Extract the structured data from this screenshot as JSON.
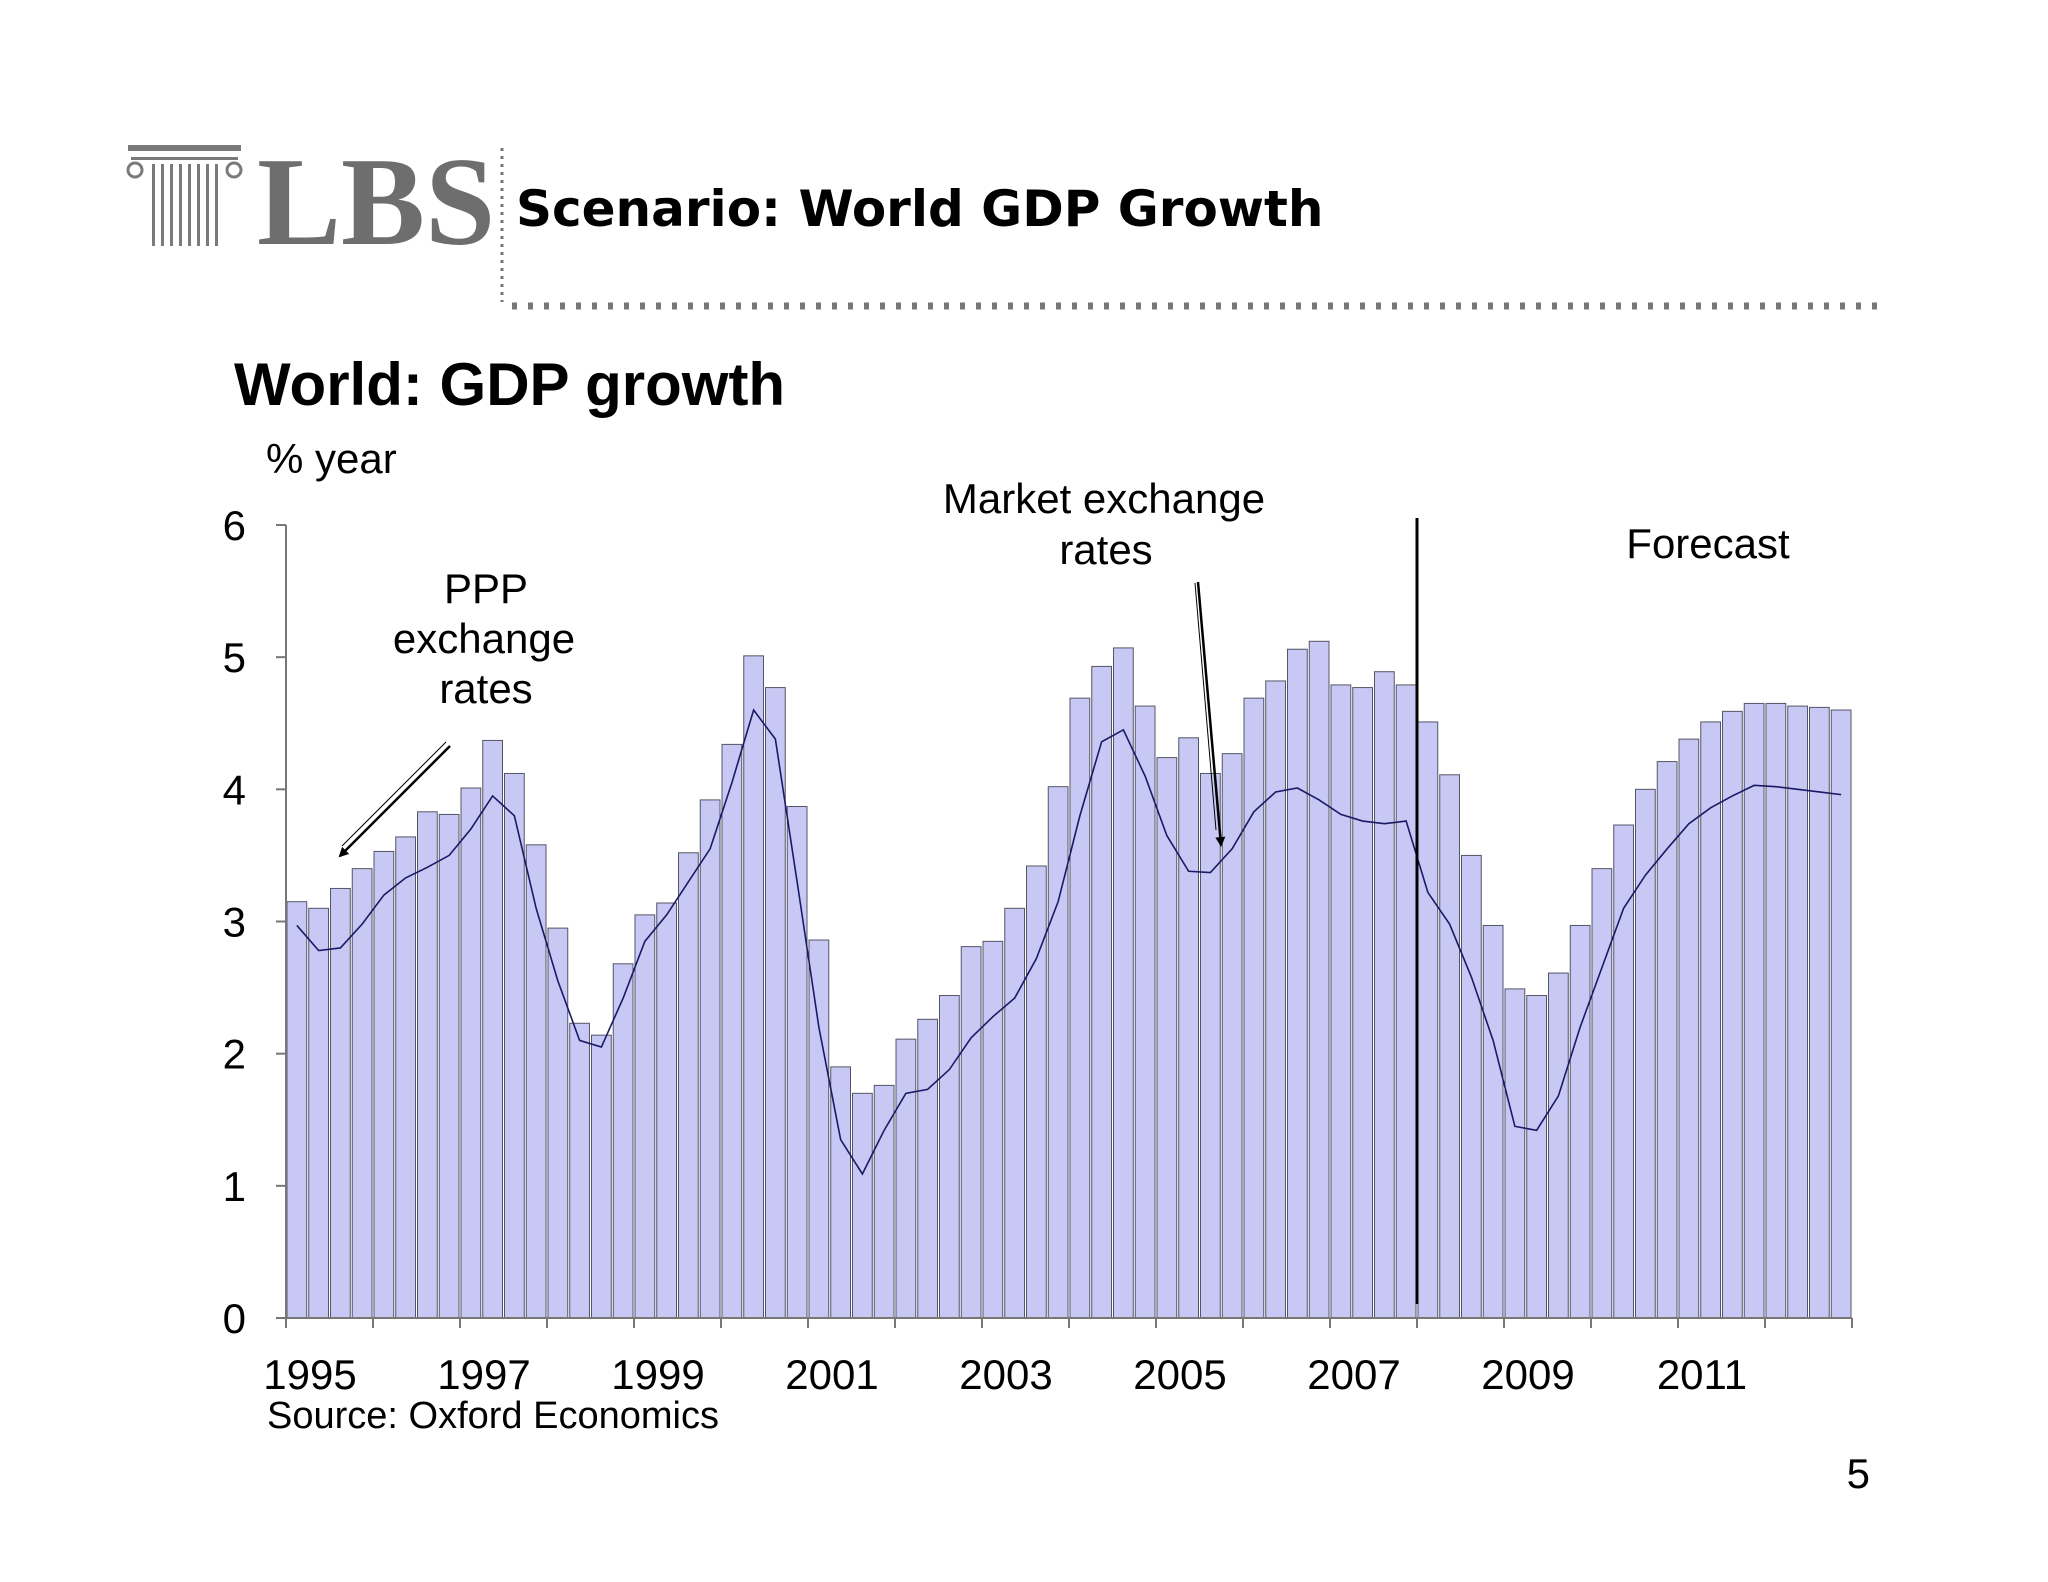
{
  "header": {
    "logo_text": "LBS",
    "title": "Scenario: World GDP Growth"
  },
  "chart_data": {
    "type": "bar",
    "title": "World: GDP growth",
    "ylabel": "% year",
    "ylim": [
      0,
      6
    ],
    "yticks": [
      "0",
      "1",
      "2",
      "3",
      "4",
      "5",
      "6"
    ],
    "xtick_labels": [
      "1995",
      "1997",
      "1999",
      "2001",
      "2003",
      "2005",
      "2007",
      "2009",
      "2011"
    ],
    "x_start": "1995Q1",
    "frequency": "quarterly",
    "grid": false,
    "colors": {
      "bar_fill": "#c8c8f5",
      "bar_edge": "#555566",
      "line": "#1a1a66"
    },
    "series": [
      {
        "name": "PPP exchange rates",
        "mark": "bar",
        "values": [
          3.15,
          3.1,
          3.25,
          3.4,
          3.53,
          3.64,
          3.83,
          3.81,
          4.01,
          4.37,
          4.12,
          3.58,
          2.95,
          2.23,
          2.14,
          2.68,
          3.05,
          3.14,
          3.52,
          3.92,
          4.34,
          5.01,
          4.77,
          3.87,
          2.86,
          1.9,
          1.7,
          1.76,
          2.11,
          2.26,
          2.44,
          2.81,
          2.85,
          3.1,
          3.42,
          4.02,
          4.69,
          4.93,
          5.07,
          4.63,
          4.24,
          4.39,
          4.12,
          4.27,
          4.69,
          4.82,
          5.06,
          5.12,
          4.79,
          4.77,
          4.89,
          4.79,
          4.51,
          4.11,
          3.5,
          2.97,
          2.49,
          2.44,
          2.61,
          2.97,
          3.4,
          3.73,
          4.0,
          4.21,
          4.38,
          4.51,
          4.59,
          4.65,
          4.65,
          4.63,
          4.62,
          4.6
        ]
      },
      {
        "name": "Market exchange rates",
        "mark": "line",
        "values": [
          2.97,
          2.78,
          2.8,
          2.98,
          3.2,
          3.33,
          3.41,
          3.5,
          3.7,
          3.95,
          3.8,
          3.1,
          2.55,
          2.1,
          2.05,
          2.42,
          2.85,
          3.05,
          3.3,
          3.55,
          4.05,
          4.6,
          4.38,
          3.3,
          2.2,
          1.35,
          1.09,
          1.42,
          1.7,
          1.73,
          1.88,
          2.12,
          2.28,
          2.42,
          2.72,
          3.15,
          3.8,
          4.36,
          4.45,
          4.1,
          3.65,
          3.38,
          3.37,
          3.55,
          3.83,
          3.98,
          4.01,
          3.92,
          3.81,
          3.76,
          3.74,
          3.76,
          3.22,
          2.98,
          2.58,
          2.1,
          1.45,
          1.42,
          1.68,
          2.2,
          2.65,
          3.1,
          3.35,
          3.55,
          3.74,
          3.86,
          3.95,
          4.03,
          4.02,
          4.0,
          3.98,
          3.96
        ]
      }
    ],
    "forecast_start": "2008Q1",
    "annotations": {
      "ppp": [
        "PPP",
        "exchange",
        "rates"
      ],
      "mer": [
        "Market exchange",
        "rates"
      ],
      "forecast": "Forecast"
    }
  },
  "source": "Source: Oxford Economics",
  "page_number": "5"
}
